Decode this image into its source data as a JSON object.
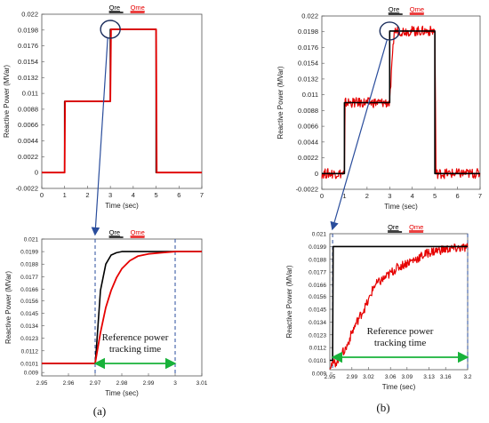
{
  "colors": {
    "ref": "#000000",
    "meas": "#e60000",
    "arrow": "#2a4d9c",
    "track": "#18b23a",
    "vline": "#2a4d9c"
  },
  "labels": {
    "a": "(a)",
    "b": "(b)"
  },
  "chart_data": [
    {
      "id": "a_top",
      "type": "line",
      "xlabel": "Time (sec)",
      "ylabel": "Reactive Power (MVar)",
      "xlim": [
        0,
        7
      ],
      "ylim": [
        -0.0022,
        0.022
      ],
      "xticks": [
        0,
        1,
        2,
        3,
        4,
        5,
        6,
        7
      ],
      "xtick_labels": [
        "0",
        "1",
        "2",
        "3",
        "4",
        "5",
        "6",
        "7"
      ],
      "yticks": [
        -0.0022,
        0,
        0.0022,
        0.0044,
        0.0066,
        0.0088,
        0.011,
        0.0132,
        0.0154,
        0.0176,
        0.0198,
        0.022
      ],
      "ytick_labels": [
        "-0.0022",
        "0",
        "0.0022",
        "0.0044",
        "0.0066",
        "0.0088",
        "0.011",
        "0.0132",
        "0.0154",
        "0.0176",
        "0.0198",
        "0.022"
      ],
      "series": [
        {
          "name": "Qre",
          "color": "#000000",
          "x": [
            0,
            1,
            1,
            3,
            3,
            5,
            5,
            7
          ],
          "y": [
            0,
            0,
            0.0099,
            0.0099,
            0.0199,
            0.0199,
            0,
            0
          ]
        },
        {
          "name": "Qme",
          "color": "#e60000",
          "x": [
            0,
            1,
            1.02,
            3,
            3.03,
            5,
            5.03,
            7
          ],
          "y": [
            0,
            0,
            0.0099,
            0.0099,
            0.0199,
            0.0199,
            0,
            0
          ]
        }
      ]
    },
    {
      "id": "b_top",
      "type": "line",
      "xlabel": "Time (sec)",
      "ylabel": "Reactive Power (MVar)",
      "xlim": [
        0,
        7
      ],
      "ylim": [
        -0.0022,
        0.022
      ],
      "xticks": [
        0,
        1,
        2,
        3,
        4,
        5,
        6,
        7
      ],
      "xtick_labels": [
        "0",
        "1",
        "2",
        "3",
        "4",
        "5",
        "6",
        "7"
      ],
      "yticks": [
        -0.0022,
        0,
        0.0022,
        0.0044,
        0.0066,
        0.0088,
        0.011,
        0.0132,
        0.0154,
        0.0176,
        0.0198,
        0.022
      ],
      "ytick_labels": [
        "-0.0022",
        "0",
        "0.0022",
        "0.0044",
        "0.0066",
        "0.0088",
        "0.011",
        "0.0132",
        "0.0154",
        "0.0176",
        "0.0198",
        "0.022"
      ],
      "series": [
        {
          "name": "Qre",
          "color": "#000000",
          "x": [
            0,
            1,
            1,
            3,
            3,
            5,
            5,
            7
          ],
          "y": [
            0,
            0,
            0.0099,
            0.0099,
            0.0199,
            0.0199,
            0,
            0
          ]
        },
        {
          "name": "Qme",
          "color": "#e60000",
          "noise": 0.0007,
          "x": [
            0,
            1,
            1.03,
            3,
            3.2,
            5,
            5.05,
            7
          ],
          "y": [
            0,
            0,
            0.0099,
            0.0099,
            0.0199,
            0.0199,
            0,
            0
          ]
        }
      ]
    },
    {
      "id": "a_zoom",
      "type": "line",
      "xlabel": "Time (sec)",
      "ylabel": "Reactive Power (MVar)",
      "xlim": [
        2.95,
        3.01
      ],
      "ylim": [
        0.009,
        0.021
      ],
      "xticks": [
        2.95,
        2.96,
        2.97,
        2.98,
        2.99,
        3,
        3.01
      ],
      "xtick_labels": [
        "2.95",
        "2.96",
        "2.97",
        "2.98",
        "2.99",
        "3",
        "3.01"
      ],
      "yticks": [
        0.0093,
        0.0101,
        0.0112,
        0.0123,
        0.0134,
        0.0145,
        0.0156,
        0.0166,
        0.0177,
        0.0188,
        0.0199,
        0.021
      ],
      "ytick_labels": [
        "0.009",
        "0.0101",
        "0.0112",
        "0.0123",
        "0.0134",
        "0.0145",
        "0.0156",
        "0.0166",
        "0.0177",
        "0.0188",
        "0.0199",
        "0.021"
      ],
      "series": [
        {
          "name": "Qre",
          "color": "#000000",
          "x": [
            2.95,
            2.97,
            2.9705,
            2.972,
            2.974,
            2.976,
            2.978,
            2.98,
            3.01
          ],
          "y": [
            0.0101,
            0.0101,
            0.0115,
            0.0165,
            0.0188,
            0.0196,
            0.0198,
            0.0199,
            0.0199
          ]
        },
        {
          "name": "Qme",
          "color": "#e60000",
          "x": [
            2.95,
            2.97,
            2.972,
            2.974,
            2.976,
            2.978,
            2.98,
            2.983,
            2.986,
            2.99,
            2.995,
            3.0,
            3.01
          ],
          "y": [
            0.0101,
            0.0101,
            0.0128,
            0.015,
            0.0165,
            0.0176,
            0.0184,
            0.0191,
            0.0195,
            0.0197,
            0.0198,
            0.0199,
            0.0199
          ]
        }
      ],
      "vlines": [
        2.97,
        3.0
      ],
      "annotation": {
        "text": [
          "Reference power",
          "tracking time"
        ],
        "from": 2.97,
        "to": 3.0
      }
    },
    {
      "id": "b_zoom",
      "type": "line",
      "xlabel": "Time (sec)",
      "ylabel": "Reactive Power (MVar)",
      "xlim": [
        2.95,
        3.2
      ],
      "ylim": [
        0.0093,
        0.021
      ],
      "xticks": [
        2.95,
        2.99,
        3.02,
        3.06,
        3.09,
        3.13,
        3.16,
        3.2
      ],
      "xtick_labels": [
        "2.95",
        "2.99",
        "3.02",
        "3.06",
        "3.09",
        "3.13",
        "3.16",
        "3.2"
      ],
      "yticks": [
        0.009,
        0.0101,
        0.0112,
        0.0123,
        0.0134,
        0.0145,
        0.0156,
        0.0166,
        0.0177,
        0.0188,
        0.0199,
        0.021
      ],
      "ytick_labels": [
        "0.009",
        "0.0101",
        "0.0112",
        "0.0123",
        "0.0134",
        "0.0145",
        "0.0156",
        "0.0166",
        "0.0177",
        "0.0188",
        "0.0199",
        "0.021"
      ],
      "series": [
        {
          "name": "Qre",
          "color": "#000000",
          "x": [
            2.95,
            2.955,
            2.956,
            3.2
          ],
          "y": [
            0.0101,
            0.0101,
            0.0199,
            0.0199
          ]
        },
        {
          "name": "Qme",
          "color": "#e60000",
          "noise": 0.0004,
          "x": [
            2.95,
            2.96,
            2.965,
            2.98,
            2.99,
            3.0,
            3.02,
            3.03,
            3.05,
            3.07,
            3.09,
            3.11,
            3.13,
            3.15,
            3.17,
            3.2
          ],
          "y": [
            0.0097,
            0.0099,
            0.0102,
            0.0112,
            0.0125,
            0.0135,
            0.0152,
            0.0165,
            0.0172,
            0.018,
            0.0185,
            0.0189,
            0.0194,
            0.0196,
            0.0197,
            0.0198
          ]
        }
      ],
      "vlines": [
        2.955,
        3.2
      ],
      "annotation": {
        "text": [
          "Reference power",
          "tracking time"
        ],
        "from": 2.955,
        "to": 3.2
      }
    }
  ]
}
